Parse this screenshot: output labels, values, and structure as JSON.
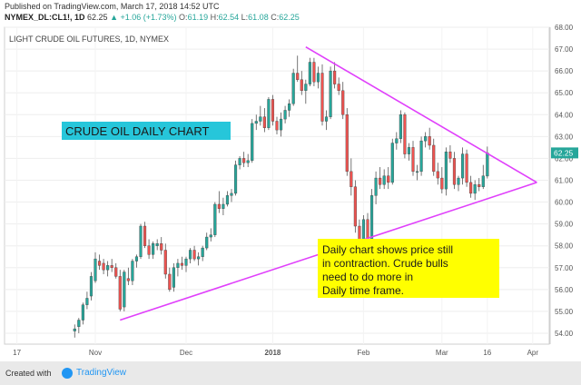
{
  "header": {
    "published": "Published on TradingView.com, March 17, 2018 14:52 UTC",
    "symbol": "NYMEX_DL:CL1!, 1D",
    "last": "62.25",
    "change": "▲ +1.06 (+1.73%)",
    "o_label": "O:",
    "o_value": "61.19",
    "h_label": "H:",
    "h_value": "62.54",
    "l_label": "L:",
    "l_value": "61.08",
    "c_label": "C:",
    "c_value": "62.25"
  },
  "footer": {
    "created_with": "Created with",
    "brand": "TradingView"
  },
  "colors": {
    "up": "#26a69a",
    "down": "#ef5350",
    "trendline": "#e040fb",
    "label_box": "#26c6da",
    "note_box": "#ffff00",
    "price_tag": "#26a69a"
  },
  "chart_data": {
    "type": "candlestick",
    "title": "LIGHT CRUDE OIL FUTURES, 1D, NYMEX",
    "annotation_label": "CRUDE OIL DAILY CHART",
    "note_lines": [
      "Daily chart shows price still",
      "in contraction. Crude bulls",
      "need to do more in",
      "Daily time frame."
    ],
    "current_price": "62.25",
    "ylim": [
      53.5,
      68.0
    ],
    "y_ticks": [
      "54.00",
      "55.00",
      "56.00",
      "57.00",
      "58.00",
      "59.00",
      "60.00",
      "61.00",
      "62.00",
      "63.00",
      "64.00",
      "65.00",
      "66.00",
      "67.00",
      "68.00"
    ],
    "x_ticks": [
      {
        "label": "17",
        "i": -14
      },
      {
        "label": "Nov",
        "i": 5
      },
      {
        "label": "Dec",
        "i": 27
      },
      {
        "label": "2018",
        "i": 48
      },
      {
        "label": "Feb",
        "i": 70
      },
      {
        "label": "Mar",
        "i": 89
      },
      {
        "label": "16",
        "i": 100
      },
      {
        "label": "Apr",
        "i": 111
      }
    ],
    "x_range": [
      -17,
      115
    ],
    "candles": [
      {
        "o": 54.1,
        "h": 54.4,
        "l": 53.8,
        "c": 54.2
      },
      {
        "o": 54.3,
        "h": 54.7,
        "l": 54.0,
        "c": 54.6
      },
      {
        "o": 54.6,
        "h": 55.4,
        "l": 54.4,
        "c": 55.3
      },
      {
        "o": 55.3,
        "h": 55.9,
        "l": 55.1,
        "c": 55.6
      },
      {
        "o": 55.7,
        "h": 56.8,
        "l": 55.5,
        "c": 56.6
      },
      {
        "o": 56.4,
        "h": 57.7,
        "l": 56.3,
        "c": 57.4
      },
      {
        "o": 57.3,
        "h": 57.6,
        "l": 56.9,
        "c": 57.1
      },
      {
        "o": 57.2,
        "h": 57.4,
        "l": 56.7,
        "c": 56.9
      },
      {
        "o": 56.9,
        "h": 57.3,
        "l": 56.6,
        "c": 57.1
      },
      {
        "o": 57.1,
        "h": 57.4,
        "l": 56.8,
        "c": 57.0
      },
      {
        "o": 57.0,
        "h": 57.2,
        "l": 56.5,
        "c": 56.6
      },
      {
        "o": 56.6,
        "h": 56.9,
        "l": 55.0,
        "c": 55.1
      },
      {
        "o": 55.2,
        "h": 56.9,
        "l": 55.0,
        "c": 56.8
      },
      {
        "o": 56.5,
        "h": 57.0,
        "l": 56.2,
        "c": 56.4
      },
      {
        "o": 56.4,
        "h": 57.4,
        "l": 56.2,
        "c": 57.3
      },
      {
        "o": 57.3,
        "h": 57.6,
        "l": 57.0,
        "c": 57.5
      },
      {
        "o": 57.5,
        "h": 59.0,
        "l": 57.4,
        "c": 58.9
      },
      {
        "o": 58.9,
        "h": 59.1,
        "l": 57.9,
        "c": 58.0
      },
      {
        "o": 58.0,
        "h": 58.3,
        "l": 57.4,
        "c": 57.6
      },
      {
        "o": 57.6,
        "h": 58.2,
        "l": 57.4,
        "c": 58.1
      },
      {
        "o": 58.0,
        "h": 58.3,
        "l": 57.8,
        "c": 58.1
      },
      {
        "o": 58.1,
        "h": 58.4,
        "l": 57.6,
        "c": 57.8
      },
      {
        "o": 57.8,
        "h": 58.1,
        "l": 56.5,
        "c": 56.7
      },
      {
        "o": 56.7,
        "h": 57.0,
        "l": 55.9,
        "c": 56.0
      },
      {
        "o": 56.1,
        "h": 57.2,
        "l": 55.9,
        "c": 57.0
      },
      {
        "o": 57.0,
        "h": 57.4,
        "l": 56.6,
        "c": 57.2
      },
      {
        "o": 57.2,
        "h": 57.5,
        "l": 56.9,
        "c": 57.1
      },
      {
        "o": 57.1,
        "h": 57.5,
        "l": 56.8,
        "c": 57.4
      },
      {
        "o": 57.4,
        "h": 57.9,
        "l": 57.2,
        "c": 57.8
      },
      {
        "o": 57.8,
        "h": 58.0,
        "l": 57.3,
        "c": 57.4
      },
      {
        "o": 57.4,
        "h": 57.7,
        "l": 57.1,
        "c": 57.5
      },
      {
        "o": 57.5,
        "h": 58.0,
        "l": 57.3,
        "c": 57.9
      },
      {
        "o": 57.9,
        "h": 58.6,
        "l": 57.8,
        "c": 58.4
      },
      {
        "o": 58.4,
        "h": 58.8,
        "l": 58.2,
        "c": 58.5
      },
      {
        "o": 58.5,
        "h": 60.0,
        "l": 58.4,
        "c": 59.9
      },
      {
        "o": 59.9,
        "h": 60.5,
        "l": 59.5,
        "c": 59.7
      },
      {
        "o": 59.7,
        "h": 60.2,
        "l": 59.4,
        "c": 59.9
      },
      {
        "o": 59.9,
        "h": 60.5,
        "l": 59.8,
        "c": 60.3
      },
      {
        "o": 60.3,
        "h": 60.6,
        "l": 60.0,
        "c": 60.4
      },
      {
        "o": 60.4,
        "h": 61.9,
        "l": 60.3,
        "c": 61.7
      },
      {
        "o": 61.7,
        "h": 62.1,
        "l": 61.5,
        "c": 62.0
      },
      {
        "o": 62.0,
        "h": 62.3,
        "l": 61.6,
        "c": 61.8
      },
      {
        "o": 61.8,
        "h": 62.2,
        "l": 61.6,
        "c": 61.9
      },
      {
        "o": 61.9,
        "h": 63.8,
        "l": 61.8,
        "c": 63.6
      },
      {
        "o": 63.6,
        "h": 64.0,
        "l": 63.3,
        "c": 63.7
      },
      {
        "o": 63.7,
        "h": 64.4,
        "l": 63.5,
        "c": 63.9
      },
      {
        "o": 63.9,
        "h": 64.3,
        "l": 63.2,
        "c": 63.4
      },
      {
        "o": 63.4,
        "h": 64.8,
        "l": 63.3,
        "c": 64.7
      },
      {
        "o": 64.7,
        "h": 64.9,
        "l": 63.5,
        "c": 63.7
      },
      {
        "o": 63.7,
        "h": 63.9,
        "l": 63.1,
        "c": 63.3
      },
      {
        "o": 63.3,
        "h": 64.1,
        "l": 63.0,
        "c": 63.8
      },
      {
        "o": 63.8,
        "h": 64.4,
        "l": 63.6,
        "c": 64.2
      },
      {
        "o": 64.2,
        "h": 64.7,
        "l": 63.9,
        "c": 64.5
      },
      {
        "o": 64.5,
        "h": 66.1,
        "l": 64.4,
        "c": 65.9
      },
      {
        "o": 65.9,
        "h": 66.7,
        "l": 65.5,
        "c": 65.6
      },
      {
        "o": 65.6,
        "h": 66.0,
        "l": 64.9,
        "c": 65.1
      },
      {
        "o": 65.1,
        "h": 65.6,
        "l": 64.5,
        "c": 65.4
      },
      {
        "o": 65.4,
        "h": 66.6,
        "l": 65.3,
        "c": 66.4
      },
      {
        "o": 66.4,
        "h": 66.6,
        "l": 65.3,
        "c": 65.5
      },
      {
        "o": 65.5,
        "h": 66.2,
        "l": 65.2,
        "c": 65.9
      },
      {
        "o": 65.9,
        "h": 66.3,
        "l": 63.5,
        "c": 63.7
      },
      {
        "o": 63.7,
        "h": 64.2,
        "l": 63.3,
        "c": 63.9
      },
      {
        "o": 63.9,
        "h": 66.2,
        "l": 63.8,
        "c": 66.0
      },
      {
        "o": 66.0,
        "h": 66.4,
        "l": 65.2,
        "c": 65.4
      },
      {
        "o": 65.4,
        "h": 65.7,
        "l": 64.9,
        "c": 65.1
      },
      {
        "o": 65.1,
        "h": 65.5,
        "l": 63.8,
        "c": 64.0
      },
      {
        "o": 64.0,
        "h": 64.3,
        "l": 61.2,
        "c": 61.4
      },
      {
        "o": 61.4,
        "h": 62.0,
        "l": 60.3,
        "c": 60.7
      },
      {
        "o": 60.7,
        "h": 61.0,
        "l": 58.6,
        "c": 58.9
      },
      {
        "o": 58.9,
        "h": 59.2,
        "l": 58.0,
        "c": 58.3
      },
      {
        "o": 58.3,
        "h": 59.4,
        "l": 58.1,
        "c": 59.2
      },
      {
        "o": 59.2,
        "h": 59.5,
        "l": 58.0,
        "c": 58.2
      },
      {
        "o": 58.2,
        "h": 60.6,
        "l": 58.1,
        "c": 60.3
      },
      {
        "o": 60.3,
        "h": 61.4,
        "l": 59.9,
        "c": 61.1
      },
      {
        "o": 61.1,
        "h": 61.6,
        "l": 60.6,
        "c": 60.8
      },
      {
        "o": 60.8,
        "h": 61.5,
        "l": 60.6,
        "c": 61.2
      },
      {
        "o": 61.2,
        "h": 61.6,
        "l": 60.6,
        "c": 60.9
      },
      {
        "o": 60.9,
        "h": 62.9,
        "l": 60.8,
        "c": 62.7
      },
      {
        "o": 62.7,
        "h": 63.2,
        "l": 62.4,
        "c": 62.9
      },
      {
        "o": 62.9,
        "h": 64.2,
        "l": 62.7,
        "c": 64.0
      },
      {
        "o": 64.0,
        "h": 64.1,
        "l": 62.0,
        "c": 62.2
      },
      {
        "o": 62.2,
        "h": 62.7,
        "l": 61.9,
        "c": 62.5
      },
      {
        "o": 62.5,
        "h": 62.8,
        "l": 61.2,
        "c": 61.4
      },
      {
        "o": 61.4,
        "h": 61.7,
        "l": 61.0,
        "c": 61.4
      },
      {
        "o": 61.4,
        "h": 63.0,
        "l": 61.2,
        "c": 62.8
      },
      {
        "o": 62.8,
        "h": 63.2,
        "l": 62.5,
        "c": 63.0
      },
      {
        "o": 63.0,
        "h": 63.4,
        "l": 62.4,
        "c": 62.6
      },
      {
        "o": 62.6,
        "h": 62.9,
        "l": 61.2,
        "c": 61.4
      },
      {
        "o": 61.4,
        "h": 61.8,
        "l": 60.8,
        "c": 61.1
      },
      {
        "o": 61.1,
        "h": 61.6,
        "l": 60.4,
        "c": 60.6
      },
      {
        "o": 60.6,
        "h": 62.5,
        "l": 60.3,
        "c": 62.3
      },
      {
        "o": 62.3,
        "h": 62.6,
        "l": 61.8,
        "c": 62.0
      },
      {
        "o": 62.0,
        "h": 62.3,
        "l": 60.6,
        "c": 60.8
      },
      {
        "o": 60.8,
        "h": 61.2,
        "l": 60.5,
        "c": 61.1
      },
      {
        "o": 61.1,
        "h": 62.5,
        "l": 60.8,
        "c": 62.2
      },
      {
        "o": 62.2,
        "h": 62.4,
        "l": 60.7,
        "c": 60.9
      },
      {
        "o": 60.9,
        "h": 61.2,
        "l": 60.2,
        "c": 60.4
      },
      {
        "o": 60.4,
        "h": 61.0,
        "l": 60.1,
        "c": 60.8
      },
      {
        "o": 60.8,
        "h": 61.1,
        "l": 60.5,
        "c": 60.7
      },
      {
        "o": 60.7,
        "h": 61.7,
        "l": 60.6,
        "c": 61.2
      },
      {
        "o": 61.19,
        "h": 62.54,
        "l": 61.08,
        "c": 62.25
      }
    ],
    "trendlines": [
      {
        "name": "upper",
        "from": {
          "i": 56,
          "y": 67.1
        },
        "to": {
          "i": 112,
          "y": 60.9
        }
      },
      {
        "name": "lower",
        "from": {
          "i": 11,
          "y": 54.6
        },
        "to": {
          "i": 112,
          "y": 60.9
        }
      }
    ]
  }
}
